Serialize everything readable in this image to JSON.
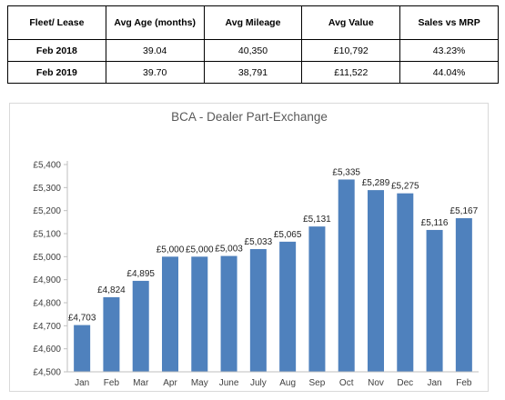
{
  "table": {
    "headers": [
      "Fleet/ Lease",
      "Avg Age (months)",
      "Avg Mileage",
      "Avg Value",
      "Sales vs MRP"
    ],
    "rows": [
      [
        "Feb 2018",
        "39.04",
        "40,350",
        "£10,792",
        "43.23%"
      ],
      [
        "Feb 2019",
        "39.70",
        "38,791",
        "£11,522",
        "44.04%"
      ]
    ]
  },
  "chart_data": {
    "type": "bar",
    "title": "BCA - Dealer Part-Exchange",
    "xlabel": "",
    "ylabel": "",
    "categories": [
      "Jan",
      "Feb",
      "Mar",
      "Apr",
      "May",
      "June",
      "July",
      "Aug",
      "Sep",
      "Oct",
      "Nov",
      "Dec",
      "Jan",
      "Feb"
    ],
    "values": [
      4703,
      4824,
      4895,
      5000,
      5000,
      5003,
      5033,
      5065,
      5131,
      5335,
      5289,
      5275,
      5116,
      5167
    ],
    "value_labels": [
      "£4,703",
      "£4,824",
      "£4,895",
      "£5,000",
      "£5,000",
      "£5,003",
      "£5,033",
      "£5,065",
      "£5,131",
      "£5,335",
      "£5,289",
      "£5,275",
      "£5,116",
      "£5,167"
    ],
    "ylim": [
      4500,
      5400
    ],
    "yticks": [
      4500,
      4600,
      4700,
      4800,
      4900,
      5000,
      5100,
      5200,
      5300,
      5400
    ],
    "ytick_labels": [
      "£4,500",
      "£4,600",
      "£4,700",
      "£4,800",
      "£4,900",
      "£5,000",
      "£5,100",
      "£5,200",
      "£5,300",
      "£5,400"
    ],
    "bar_color": "#4F81BD",
    "grid": false,
    "legend": "none"
  }
}
